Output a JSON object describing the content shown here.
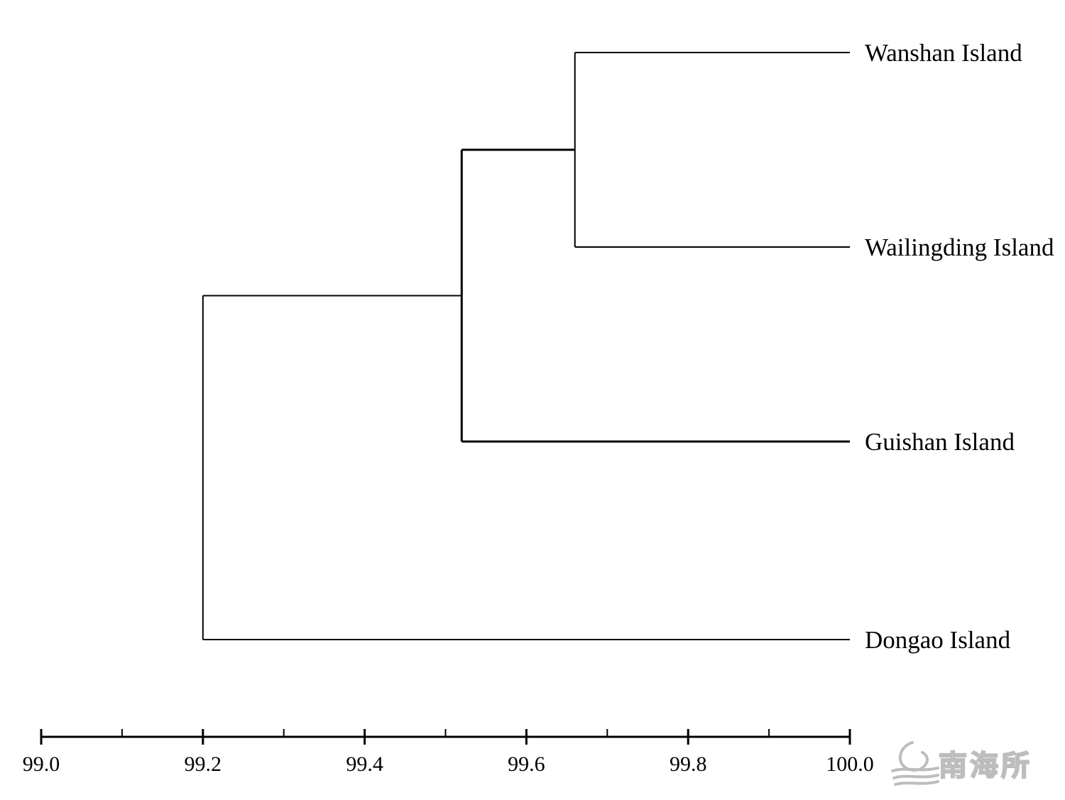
{
  "chart_data": {
    "type": "dendrogram",
    "orientation": "leaves-right",
    "leaves": [
      "Wanshan Island",
      "Wailingding Island",
      "Guishan Island",
      "Dongao Island"
    ],
    "merges": [
      {
        "left": "Wanshan Island",
        "right": "Wailingding Island",
        "similarity": 99.66
      },
      {
        "left": "Wanshan Island + Wailingding Island",
        "right": "Guishan Island",
        "similarity": 99.52
      },
      {
        "left": "Wanshan Island + Wailingding Island + Guishan Island",
        "right": "Dongao Island",
        "similarity": 99.2
      }
    ],
    "axis": {
      "min": 99.0,
      "max": 100.0,
      "major_ticks": [
        99.0,
        99.2,
        99.4,
        99.6,
        99.8,
        100.0
      ],
      "tick_labels": [
        "99.0",
        "99.2",
        "99.4",
        "99.6",
        "99.8",
        "100.0"
      ],
      "minor_ticks": [
        99.1,
        99.3,
        99.5,
        99.7,
        99.9
      ]
    },
    "title": "",
    "xlabel": "",
    "ylabel": ""
  },
  "watermark": {
    "text": "南海所",
    "color": "#bdbdbd"
  }
}
